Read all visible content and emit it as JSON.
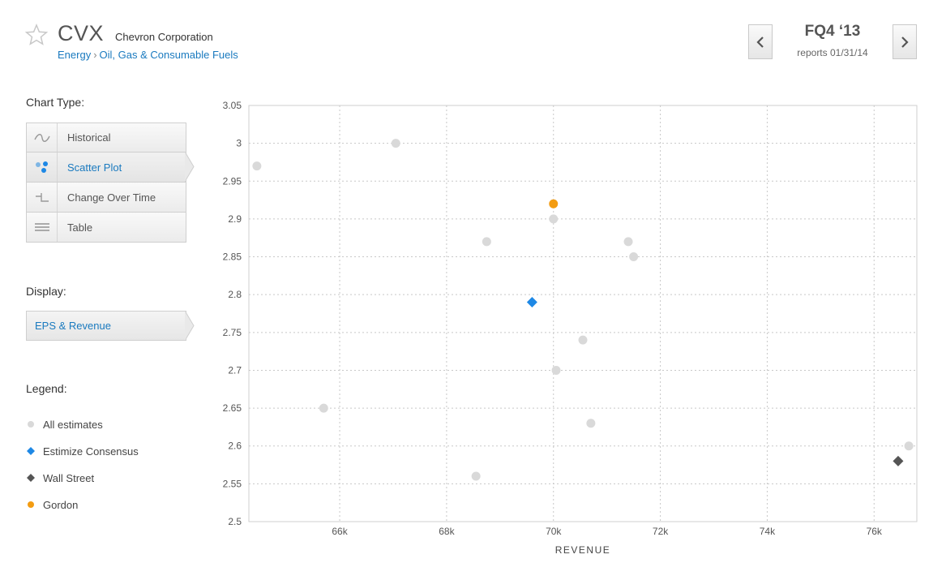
{
  "header": {
    "ticker": "CVX",
    "company": "Chevron Corporation",
    "breadcrumb": [
      "Energy",
      "Oil, Gas & Consumable Fuels"
    ],
    "period": "FQ4 ‘13",
    "reports": "reports 01/31/14"
  },
  "sidebar": {
    "chart_type_label": "Chart Type:",
    "chart_types": [
      {
        "label": "Historical",
        "icon": "wave-icon",
        "active": false
      },
      {
        "label": "Scatter Plot",
        "icon": "scatter-icon",
        "active": true
      },
      {
        "label": "Change Over Time",
        "icon": "step-icon",
        "active": false
      },
      {
        "label": "Table",
        "icon": "table-icon",
        "active": false
      }
    ],
    "display_label": "Display:",
    "display_value": "EPS & Revenue",
    "legend_label": "Legend:"
  },
  "colors": {
    "estimate": "#d9d9d9",
    "consensus": "#1e88e5",
    "wallstreet": "#555555",
    "gordon": "#f39c12",
    "link": "#1a7abf"
  },
  "chart_data": {
    "type": "scatter",
    "xlabel": "REVENUE",
    "ylabel": "",
    "xlim": [
      64300,
      76800
    ],
    "ylim": [
      2.5,
      3.05
    ],
    "xticks": [
      66000,
      68000,
      70000,
      72000,
      74000,
      76000
    ],
    "xtick_labels": [
      "66k",
      "68k",
      "70k",
      "72k",
      "74k",
      "76k"
    ],
    "yticks": [
      2.5,
      2.55,
      2.6,
      2.65,
      2.7,
      2.75,
      2.8,
      2.85,
      2.9,
      2.95,
      3,
      3.05
    ],
    "ytick_labels": [
      "2.5",
      "2.55",
      "2.6",
      "2.65",
      "2.7",
      "2.75",
      "2.8",
      "2.85",
      "2.9",
      "2.95",
      "3",
      "3.05"
    ],
    "grid": true,
    "series": [
      {
        "name": "All estimates",
        "marker": "circle",
        "color": "#d9d9d9",
        "points": [
          [
            64450,
            2.97
          ],
          [
            67050,
            3.0
          ],
          [
            65700,
            2.65
          ],
          [
            68750,
            2.87
          ],
          [
            70000,
            2.9
          ],
          [
            71400,
            2.87
          ],
          [
            71500,
            2.85
          ],
          [
            70550,
            2.74
          ],
          [
            70050,
            2.7
          ],
          [
            70700,
            2.63
          ],
          [
            68550,
            2.56
          ],
          [
            76650,
            2.6
          ]
        ]
      },
      {
        "name": "Estimize Consensus",
        "marker": "diamond",
        "color": "#1e88e5",
        "points": [
          [
            69600,
            2.79
          ]
        ]
      },
      {
        "name": "Wall Street",
        "marker": "diamond",
        "color": "#555555",
        "points": [
          [
            76450,
            2.58
          ]
        ]
      },
      {
        "name": "Gordon",
        "marker": "circle",
        "color": "#f39c12",
        "points": [
          [
            70000,
            2.92
          ]
        ]
      }
    ]
  }
}
